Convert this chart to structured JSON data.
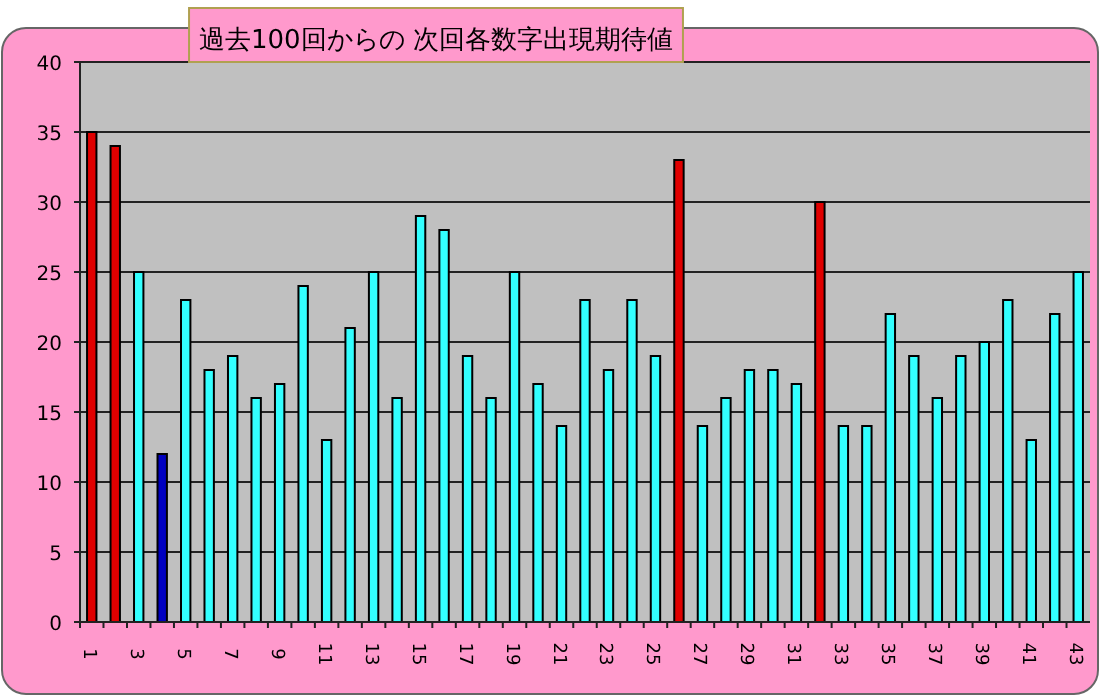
{
  "chart_data": {
    "type": "bar",
    "title": "過去100回からの 次回各数字出現期待値",
    "categories": [
      "1",
      null,
      "3",
      null,
      "5",
      null,
      "7",
      null,
      "9",
      null,
      "11",
      null,
      "13",
      null,
      "15",
      null,
      "17",
      null,
      "19",
      null,
      "21",
      null,
      "23",
      null,
      "25",
      null,
      "27",
      null,
      "29",
      null,
      "31",
      null,
      "33",
      null,
      "35",
      null,
      "37",
      null,
      "39",
      null,
      "41",
      null,
      "43"
    ],
    "values": [
      35,
      34,
      25,
      12,
      23,
      18,
      19,
      16,
      17,
      24,
      13,
      21,
      25,
      16,
      29,
      28,
      19,
      16,
      25,
      17,
      14,
      23,
      18,
      23,
      19,
      33,
      14,
      16,
      18,
      18,
      17,
      30,
      14,
      14,
      22,
      19,
      16,
      19,
      20,
      23,
      13,
      22,
      25
    ],
    "colors": [
      "#e00000",
      "#e00000",
      "#33ffff",
      "#0000c0",
      "#33ffff",
      "#33ffff",
      "#33ffff",
      "#33ffff",
      "#33ffff",
      "#33ffff",
      "#33ffff",
      "#33ffff",
      "#33ffff",
      "#33ffff",
      "#33ffff",
      "#33ffff",
      "#33ffff",
      "#33ffff",
      "#33ffff",
      "#33ffff",
      "#33ffff",
      "#33ffff",
      "#33ffff",
      "#33ffff",
      "#33ffff",
      "#e00000",
      "#33ffff",
      "#33ffff",
      "#33ffff",
      "#33ffff",
      "#33ffff",
      "#e00000",
      "#33ffff",
      "#33ffff",
      "#33ffff",
      "#33ffff",
      "#33ffff",
      "#33ffff",
      "#33ffff",
      "#33ffff",
      "#33ffff",
      "#33ffff",
      "#33ffff"
    ],
    "ylim": [
      0,
      40
    ],
    "yticks": [
      0,
      5,
      10,
      15,
      20,
      25,
      30,
      35,
      40
    ],
    "grid": "y"
  }
}
